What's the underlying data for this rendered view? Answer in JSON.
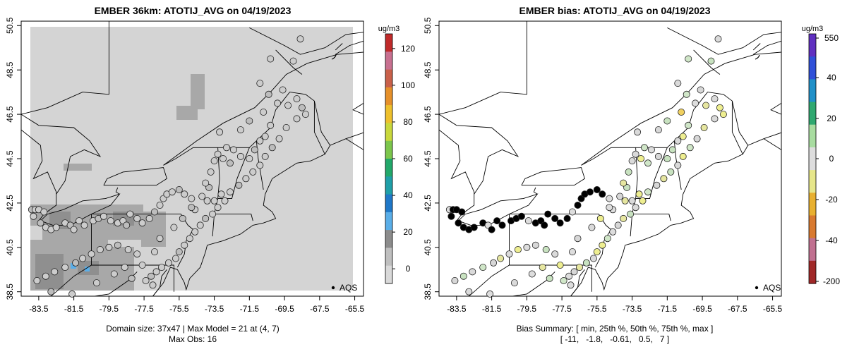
{
  "chart_data": [
    {
      "type": "map",
      "title": "EMBER 36km: ATOTIJ_AVG on 04/19/2023",
      "colorbar": {
        "unit_label": "ug/m3",
        "tick_labels": [
          "120",
          "100",
          "80",
          "60",
          "40",
          "20",
          "0"
        ],
        "range": [
          -8,
          128
        ],
        "colors": [
          "#d9d9d9",
          "#bfbfbf",
          "#8c8c8c",
          "#5aaee8",
          "#1f78c8",
          "#1f9fa8",
          "#22a86a",
          "#7cc64c",
          "#c9d83c",
          "#eec02c",
          "#e6902a",
          "#c9604a",
          "#c87090",
          "#c02a2a"
        ]
      },
      "x_ticks": [
        "-83.5",
        "-81.5",
        "-79.5",
        "-77.5",
        "-75.5",
        "-73.5",
        "-71.5",
        "-69.5",
        "-67.5",
        "-65.5"
      ],
      "y_ticks": [
        "50.5",
        "48.5",
        "46.5",
        "44.5",
        "42.5",
        "40.5",
        "38.5"
      ],
      "xlim": [
        -84.5,
        -65
      ],
      "ylim": [
        38.3,
        50.7
      ],
      "legend": {
        "label": "AQS",
        "position": "bottom-right"
      },
      "caption": [
        "Domain size: 37x47 | Max Model = 21 at (4, 7)",
        "Max Obs: 16"
      ]
    },
    {
      "type": "map",
      "title": "EMBER bias: ATOTIJ_AVG on 04/19/2023",
      "colorbar": {
        "unit_label": "ug/m3",
        "tick_labels": [
          "550",
          "40",
          "20",
          "0",
          "-20",
          "-40",
          "-200"
        ],
        "colors": [
          "#a02828",
          "#c07090",
          "#d87a30",
          "#e8b030",
          "#e6e68a",
          "#dddddd",
          "#a8dca0",
          "#30a870",
          "#2090c8",
          "#3050d8",
          "#6030c0"
        ]
      },
      "x_ticks": [
        "-83.5",
        "-81.5",
        "-79.5",
        "-77.5",
        "-75.5",
        "-73.5",
        "-71.5",
        "-69.5",
        "-67.5",
        "-65.5"
      ],
      "y_ticks": [
        "50.5",
        "48.5",
        "46.5",
        "44.5",
        "42.5",
        "40.5",
        "38.5"
      ],
      "xlim": [
        -84.5,
        -65
      ],
      "ylim": [
        38.3,
        50.7
      ],
      "legend": {
        "label": "AQS",
        "position": "bottom-right"
      },
      "caption": [
        "Bias Summary: [ min, 25th %, 50th %, 75th %, max ]",
        "[ -11,   -1.8,   -0.61,   0.5,   7 ]"
      ],
      "bias_summary": {
        "min": -11,
        "p25": -1.8,
        "p50": -0.61,
        "p75": 0.5,
        "max": 7
      }
    }
  ],
  "stations": [
    [
      -83.9,
      42.2
    ],
    [
      -83.7,
      42.2
    ],
    [
      -83.5,
      42.2
    ],
    [
      -83.2,
      42.1
    ],
    [
      -83.8,
      41.9
    ],
    [
      -83.4,
      41.6
    ],
    [
      -83.1,
      41.4
    ],
    [
      -82.8,
      41.3
    ],
    [
      -82.5,
      41.4
    ],
    [
      -82.0,
      41.6
    ],
    [
      -81.7,
      41.5
    ],
    [
      -81.5,
      41.3
    ],
    [
      -81.2,
      41.7
    ],
    [
      -80.9,
      41.5
    ],
    [
      -80.4,
      41.7
    ],
    [
      -80.1,
      41.8
    ],
    [
      -79.8,
      41.9
    ],
    [
      -79.4,
      41.7
    ],
    [
      -79.0,
      41.6
    ],
    [
      -78.7,
      41.7
    ],
    [
      -78.5,
      41.5
    ],
    [
      -78.3,
      42.0
    ],
    [
      -77.9,
      41.8
    ],
    [
      -77.6,
      41.6
    ],
    [
      -77.2,
      41.8
    ],
    [
      -76.9,
      42.1
    ],
    [
      -76.6,
      42.4
    ],
    [
      -76.4,
      42.7
    ],
    [
      -76.2,
      42.9
    ],
    [
      -75.9,
      43.0
    ],
    [
      -75.5,
      43.1
    ],
    [
      -75.2,
      42.9
    ],
    [
      -74.8,
      42.7
    ],
    [
      -74.2,
      42.8
    ],
    [
      -73.9,
      42.6
    ],
    [
      -73.8,
      43.2
    ],
    [
      -73.7,
      43.9
    ],
    [
      -73.5,
      44.4
    ],
    [
      -73.3,
      44.7
    ],
    [
      -73.0,
      44.5
    ],
    [
      -72.6,
      44.3
    ],
    [
      -72.8,
      45.0
    ],
    [
      -72.4,
      44.9
    ],
    [
      -72.0,
      44.6
    ],
    [
      -71.5,
      44.5
    ],
    [
      -71.2,
      44.9
    ],
    [
      -70.9,
      45.3
    ],
    [
      -70.6,
      45.5
    ],
    [
      -70.3,
      46.0
    ],
    [
      -70.7,
      46.6
    ],
    [
      -70.4,
      47.4
    ],
    [
      -69.9,
      47.0
    ],
    [
      -69.6,
      47.6
    ],
    [
      -69.3,
      46.9
    ],
    [
      -68.8,
      47.2
    ],
    [
      -68.5,
      46.8
    ],
    [
      -68.3,
      46.5
    ],
    [
      -68.8,
      46.3
    ],
    [
      -69.4,
      45.9
    ],
    [
      -69.8,
      45.4
    ],
    [
      -70.2,
      45.0
    ],
    [
      -70.6,
      44.6
    ],
    [
      -70.9,
      44.2
    ],
    [
      -71.3,
      43.9
    ],
    [
      -71.7,
      43.6
    ],
    [
      -72.1,
      43.3
    ],
    [
      -72.6,
      43.0
    ],
    [
      -72.9,
      42.6
    ],
    [
      -73.3,
      42.3
    ],
    [
      -73.6,
      42.0
    ],
    [
      -74.0,
      41.8
    ],
    [
      -74.3,
      41.5
    ],
    [
      -74.6,
      41.2
    ],
    [
      -74.9,
      40.9
    ],
    [
      -75.2,
      40.6
    ],
    [
      -75.5,
      40.3
    ],
    [
      -75.7,
      40.0
    ],
    [
      -76.1,
      39.8
    ],
    [
      -76.5,
      39.6
    ],
    [
      -76.8,
      39.4
    ],
    [
      -77.1,
      39.2
    ],
    [
      -77.4,
      39.0
    ],
    [
      -77.0,
      38.8
    ],
    [
      -77.9,
      40.2
    ],
    [
      -78.4,
      40.4
    ],
    [
      -79.0,
      40.6
    ],
    [
      -79.5,
      40.5
    ],
    [
      -80.0,
      40.4
    ],
    [
      -80.5,
      40.2
    ],
    [
      -81.0,
      40.0
    ],
    [
      -81.4,
      39.8
    ],
    [
      -82.0,
      39.6
    ],
    [
      -82.6,
      39.4
    ],
    [
      -83.1,
      39.2
    ],
    [
      -83.6,
      39.0
    ],
    [
      -82.8,
      38.5
    ],
    [
      -81.6,
      38.4
    ],
    [
      -80.2,
      38.9
    ],
    [
      -79.2,
      39.3
    ],
    [
      -78.6,
      39.6
    ],
    [
      -78.2,
      39.1
    ],
    [
      -77.6,
      39.7
    ],
    [
      -76.9,
      40.3
    ],
    [
      -76.6,
      40.9
    ],
    [
      -75.8,
      41.4
    ],
    [
      -75.3,
      41.8
    ],
    [
      -74.6,
      42.2
    ],
    [
      -74.0,
      43.4
    ],
    [
      -73.2,
      45.7
    ],
    [
      -72.0,
      45.8
    ],
    [
      -71.5,
      46.2
    ],
    [
      -70.9,
      47.9
    ],
    [
      -70.3,
      49.0
    ],
    [
      -68.6,
      49.9
    ],
    [
      -69.0,
      48.9
    ],
    [
      -74.8,
      42.3
    ],
    [
      -73.1,
      42.9
    ],
    [
      -73.5,
      42.6
    ]
  ]
}
